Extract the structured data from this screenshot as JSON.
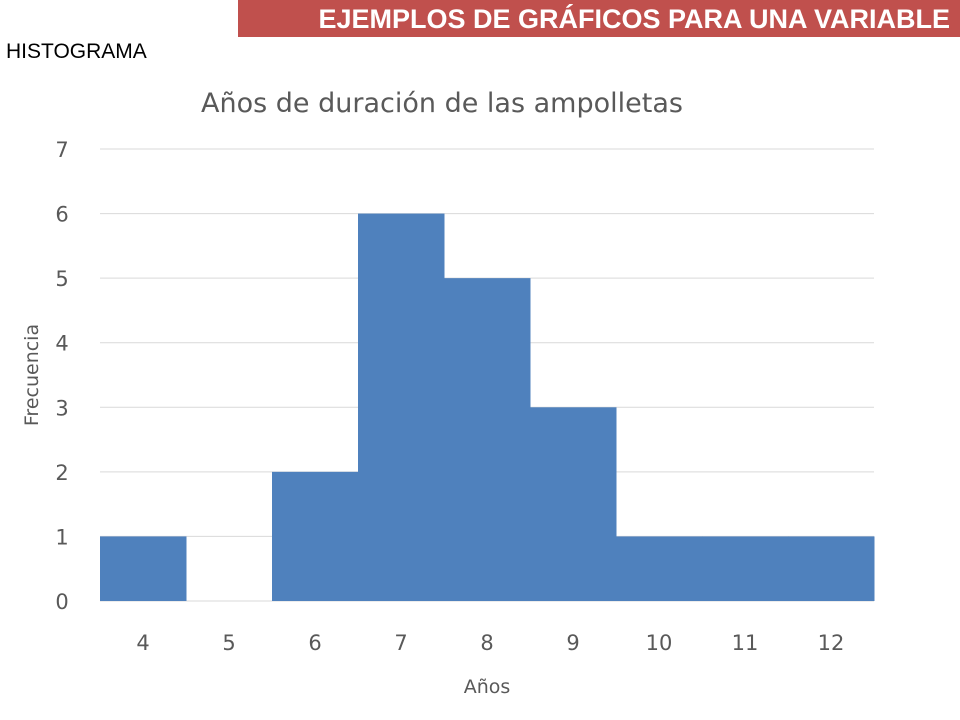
{
  "header": {
    "title": "EJEMPLOS DE GRÁFICOS PARA UNA VARIABLE",
    "subheading": "HISTOGRAMA"
  },
  "colors": {
    "header_bar": "#c0504d",
    "bar_fill": "#4f81bd",
    "gridline": "#d9d9d9",
    "text": "#595959"
  },
  "chart_data": {
    "type": "bar",
    "title": "Años de duración de las ampolletas",
    "xlabel": "Años",
    "ylabel": "Frecuencia",
    "categories": [
      "4",
      "5",
      "6",
      "7",
      "8",
      "9",
      "10",
      "11",
      "12"
    ],
    "values": [
      1,
      0,
      2,
      6,
      5,
      3,
      1,
      1,
      1
    ],
    "ylim": [
      0,
      7
    ],
    "yticks": [
      0,
      1,
      2,
      3,
      4,
      5,
      6,
      7
    ],
    "grid": true,
    "legend": "none"
  }
}
